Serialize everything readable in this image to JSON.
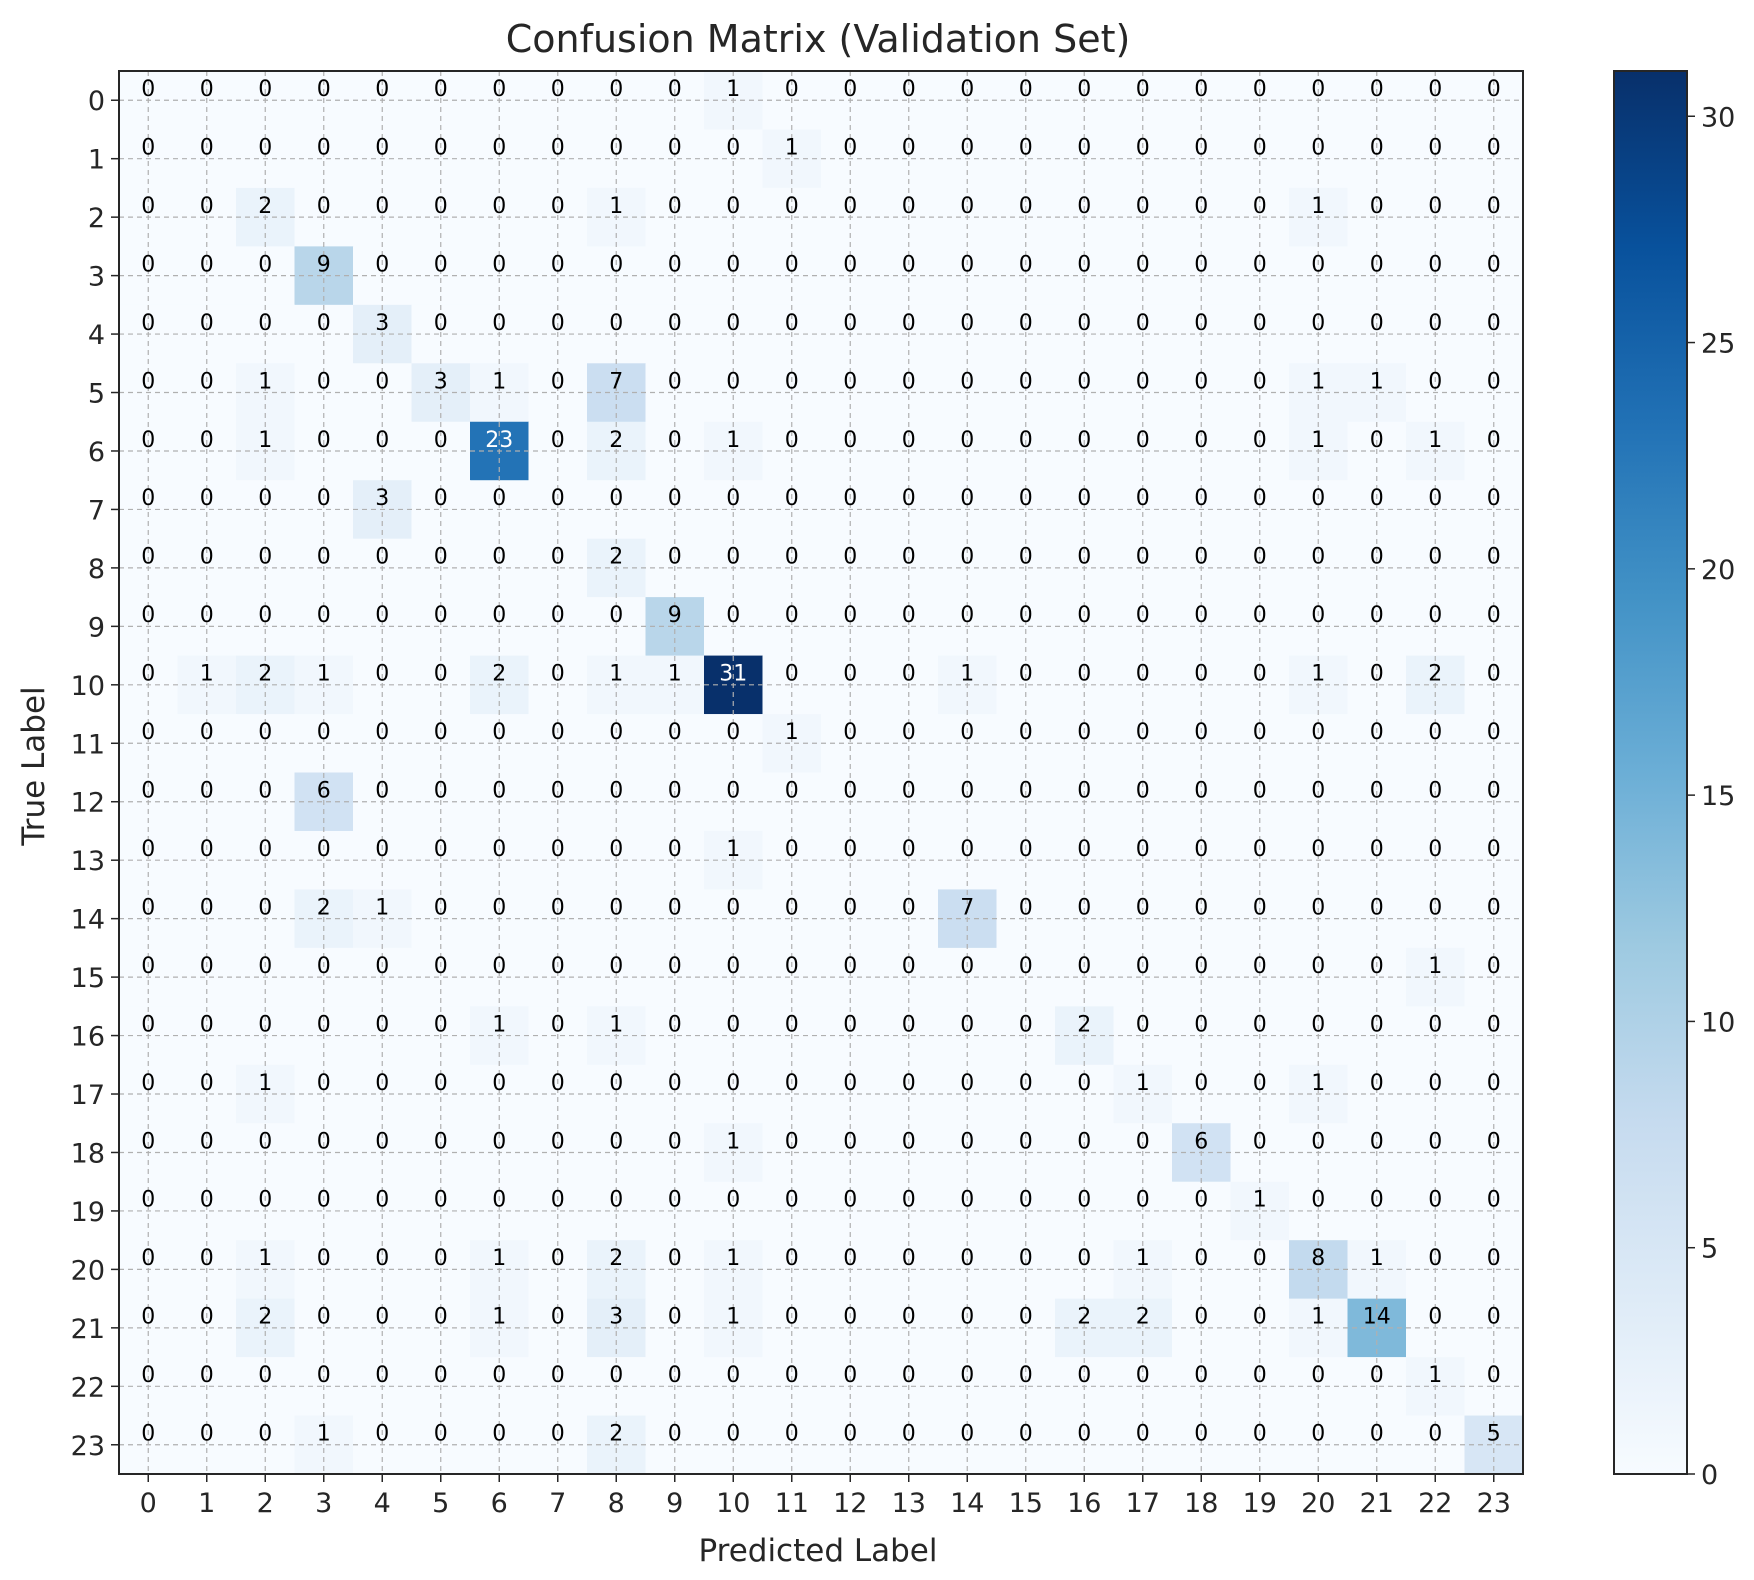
{
  "chart_data": {
    "type": "heatmap",
    "title": "Confusion Matrix (Validation Set)",
    "xlabel": "Predicted Label",
    "ylabel": "True Label",
    "x_ticks": [
      "0",
      "1",
      "2",
      "3",
      "4",
      "5",
      "6",
      "7",
      "8",
      "9",
      "10",
      "11",
      "12",
      "13",
      "14",
      "15",
      "16",
      "17",
      "18",
      "19",
      "20",
      "21",
      "22",
      "23"
    ],
    "y_ticks": [
      "0",
      "1",
      "2",
      "3",
      "4",
      "5",
      "6",
      "7",
      "8",
      "9",
      "10",
      "11",
      "12",
      "13",
      "14",
      "15",
      "16",
      "17",
      "18",
      "19",
      "20",
      "21",
      "22",
      "23"
    ],
    "colorbar": {
      "min": 0,
      "max": 31,
      "ticks": [
        "0",
        "5",
        "10",
        "15",
        "20",
        "25",
        "30"
      ],
      "colormap": "Blues"
    },
    "grid": true,
    "values": [
      [
        0,
        0,
        0,
        0,
        0,
        0,
        0,
        0,
        0,
        0,
        1,
        0,
        0,
        0,
        0,
        0,
        0,
        0,
        0,
        0,
        0,
        0,
        0,
        0
      ],
      [
        0,
        0,
        0,
        0,
        0,
        0,
        0,
        0,
        0,
        0,
        0,
        1,
        0,
        0,
        0,
        0,
        0,
        0,
        0,
        0,
        0,
        0,
        0,
        0
      ],
      [
        0,
        0,
        2,
        0,
        0,
        0,
        0,
        0,
        1,
        0,
        0,
        0,
        0,
        0,
        0,
        0,
        0,
        0,
        0,
        0,
        1,
        0,
        0,
        0
      ],
      [
        0,
        0,
        0,
        9,
        0,
        0,
        0,
        0,
        0,
        0,
        0,
        0,
        0,
        0,
        0,
        0,
        0,
        0,
        0,
        0,
        0,
        0,
        0,
        0
      ],
      [
        0,
        0,
        0,
        0,
        3,
        0,
        0,
        0,
        0,
        0,
        0,
        0,
        0,
        0,
        0,
        0,
        0,
        0,
        0,
        0,
        0,
        0,
        0,
        0
      ],
      [
        0,
        0,
        1,
        0,
        0,
        3,
        1,
        0,
        7,
        0,
        0,
        0,
        0,
        0,
        0,
        0,
        0,
        0,
        0,
        0,
        1,
        1,
        0,
        0
      ],
      [
        0,
        0,
        1,
        0,
        0,
        0,
        23,
        0,
        2,
        0,
        1,
        0,
        0,
        0,
        0,
        0,
        0,
        0,
        0,
        0,
        1,
        0,
        1,
        0
      ],
      [
        0,
        0,
        0,
        0,
        3,
        0,
        0,
        0,
        0,
        0,
        0,
        0,
        0,
        0,
        0,
        0,
        0,
        0,
        0,
        0,
        0,
        0,
        0,
        0
      ],
      [
        0,
        0,
        0,
        0,
        0,
        0,
        0,
        0,
        2,
        0,
        0,
        0,
        0,
        0,
        0,
        0,
        0,
        0,
        0,
        0,
        0,
        0,
        0,
        0
      ],
      [
        0,
        0,
        0,
        0,
        0,
        0,
        0,
        0,
        0,
        9,
        0,
        0,
        0,
        0,
        0,
        0,
        0,
        0,
        0,
        0,
        0,
        0,
        0,
        0
      ],
      [
        0,
        1,
        2,
        1,
        0,
        0,
        2,
        0,
        1,
        1,
        31,
        0,
        0,
        0,
        1,
        0,
        0,
        0,
        0,
        0,
        1,
        0,
        2,
        0
      ],
      [
        0,
        0,
        0,
        0,
        0,
        0,
        0,
        0,
        0,
        0,
        0,
        1,
        0,
        0,
        0,
        0,
        0,
        0,
        0,
        0,
        0,
        0,
        0,
        0
      ],
      [
        0,
        0,
        0,
        6,
        0,
        0,
        0,
        0,
        0,
        0,
        0,
        0,
        0,
        0,
        0,
        0,
        0,
        0,
        0,
        0,
        0,
        0,
        0,
        0
      ],
      [
        0,
        0,
        0,
        0,
        0,
        0,
        0,
        0,
        0,
        0,
        1,
        0,
        0,
        0,
        0,
        0,
        0,
        0,
        0,
        0,
        0,
        0,
        0,
        0
      ],
      [
        0,
        0,
        0,
        2,
        1,
        0,
        0,
        0,
        0,
        0,
        0,
        0,
        0,
        0,
        7,
        0,
        0,
        0,
        0,
        0,
        0,
        0,
        0,
        0
      ],
      [
        0,
        0,
        0,
        0,
        0,
        0,
        0,
        0,
        0,
        0,
        0,
        0,
        0,
        0,
        0,
        0,
        0,
        0,
        0,
        0,
        0,
        0,
        1,
        0
      ],
      [
        0,
        0,
        0,
        0,
        0,
        0,
        1,
        0,
        1,
        0,
        0,
        0,
        0,
        0,
        0,
        0,
        2,
        0,
        0,
        0,
        0,
        0,
        0,
        0
      ],
      [
        0,
        0,
        1,
        0,
        0,
        0,
        0,
        0,
        0,
        0,
        0,
        0,
        0,
        0,
        0,
        0,
        0,
        1,
        0,
        0,
        1,
        0,
        0,
        0
      ],
      [
        0,
        0,
        0,
        0,
        0,
        0,
        0,
        0,
        0,
        0,
        1,
        0,
        0,
        0,
        0,
        0,
        0,
        0,
        6,
        0,
        0,
        0,
        0,
        0
      ],
      [
        0,
        0,
        0,
        0,
        0,
        0,
        0,
        0,
        0,
        0,
        0,
        0,
        0,
        0,
        0,
        0,
        0,
        0,
        0,
        1,
        0,
        0,
        0,
        0
      ],
      [
        0,
        0,
        1,
        0,
        0,
        0,
        1,
        0,
        2,
        0,
        1,
        0,
        0,
        0,
        0,
        0,
        0,
        1,
        0,
        0,
        8,
        1,
        0,
        0
      ],
      [
        0,
        0,
        2,
        0,
        0,
        0,
        1,
        0,
        3,
        0,
        1,
        0,
        0,
        0,
        0,
        0,
        2,
        2,
        0,
        0,
        1,
        14,
        0,
        0
      ],
      [
        0,
        0,
        0,
        0,
        0,
        0,
        0,
        0,
        0,
        0,
        0,
        0,
        0,
        0,
        0,
        0,
        0,
        0,
        0,
        0,
        0,
        0,
        1,
        0
      ],
      [
        0,
        0,
        0,
        1,
        0,
        0,
        0,
        0,
        2,
        0,
        0,
        0,
        0,
        0,
        0,
        0,
        0,
        0,
        0,
        0,
        0,
        0,
        0,
        5
      ]
    ]
  }
}
